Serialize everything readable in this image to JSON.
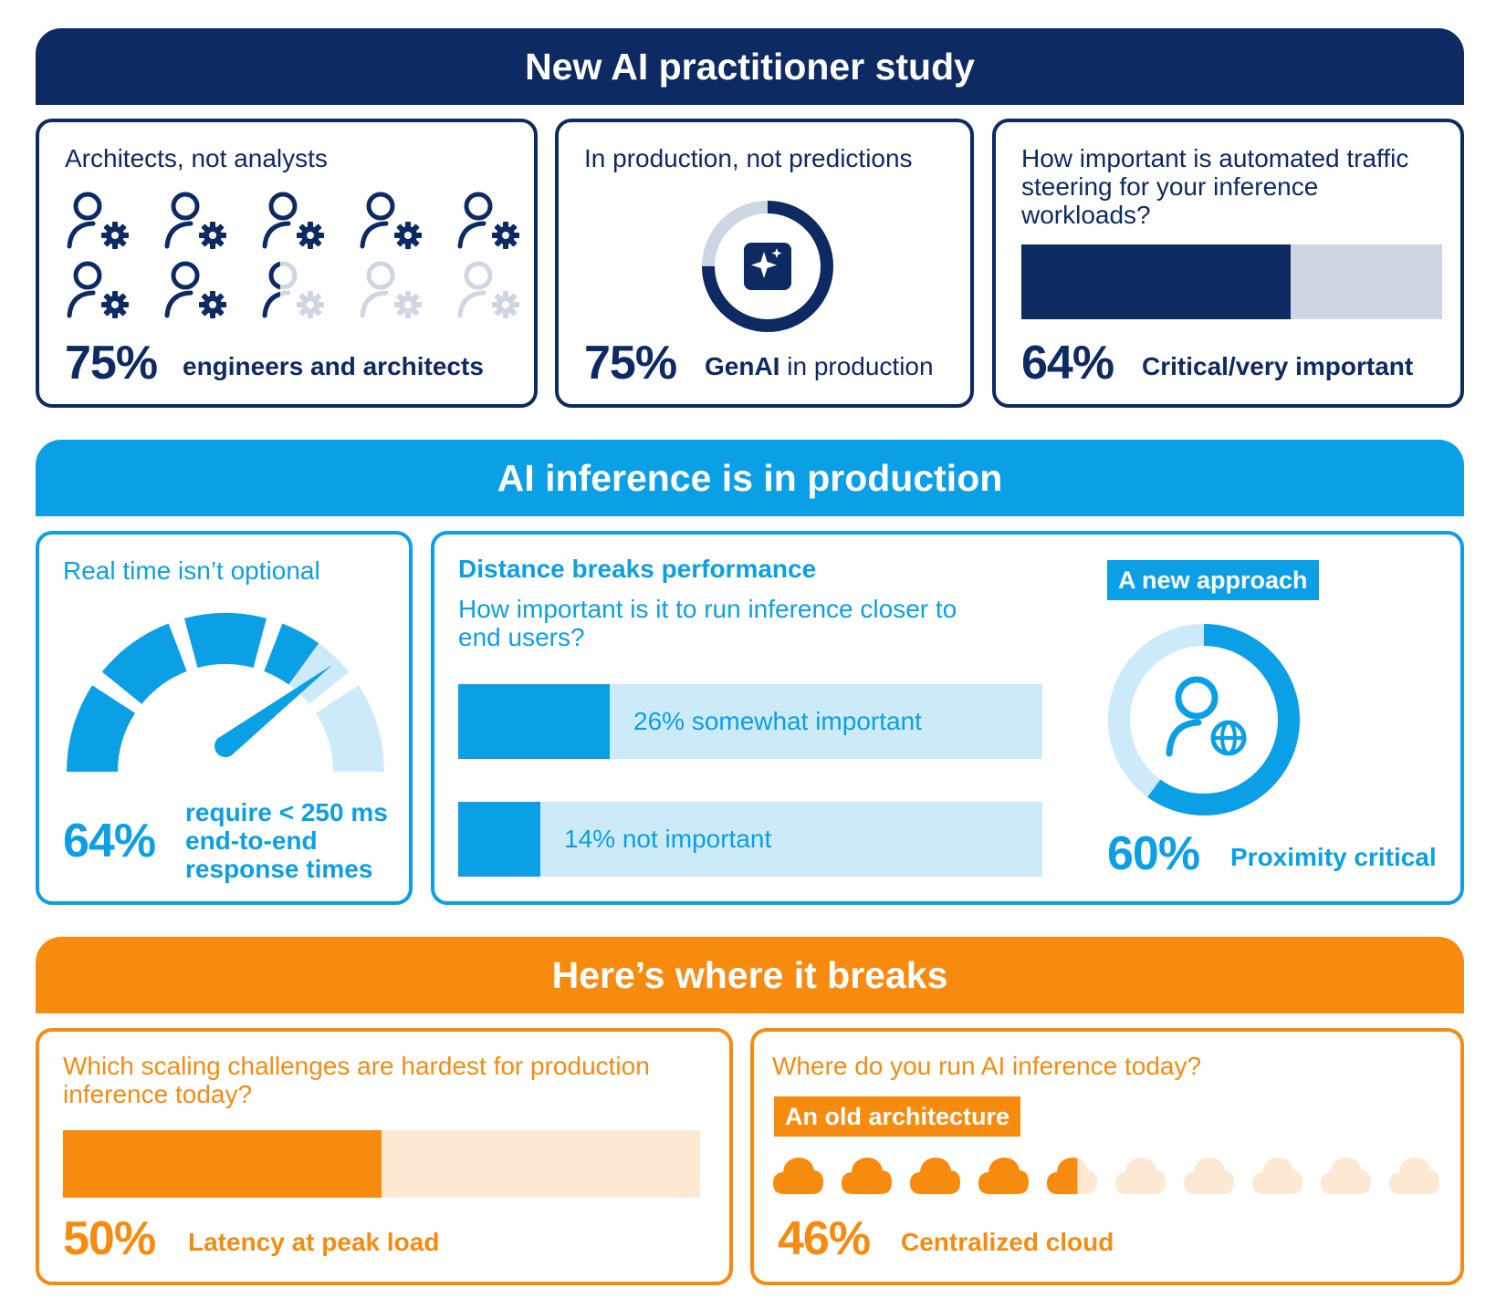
{
  "sections": {
    "study": {
      "title": "New AI practitioner study"
    },
    "inference": {
      "title": "AI inference is in production"
    },
    "breaks": {
      "title": "Here’s where it breaks"
    }
  },
  "colors": {
    "navy": "#0d2a63",
    "navy_light": "#cfd6e3",
    "blue": "#0b9fe6",
    "blue_light": "#cdeaf9",
    "orange": "#f68b0f",
    "orange_light": "#fde9d3"
  },
  "panels": {
    "architects": {
      "title": "Architects, not analysts",
      "percent": "75%",
      "label": "engineers and architects",
      "icon": "person-gear-icon"
    },
    "production": {
      "title": "In production, not predictions",
      "percent": "75%",
      "label_bold": "GenAI",
      "label_rest": " in production",
      "icon": "sparkle-icon"
    },
    "traffic": {
      "title": "How important is automated traffic steering for your inference workloads?",
      "percent": "64%",
      "label": "Critical/very important"
    },
    "realtime": {
      "title": "Real time isn’t optional",
      "percent": "64%",
      "label_lines": [
        "require < 250 ms",
        "end-to-end",
        "response times"
      ],
      "icon": "speedometer-icon"
    },
    "distance": {
      "title": "Distance breaks performance",
      "question": "How important is it to run inference closer to end users?",
      "bars": [
        "26% somewhat important",
        "14% not important"
      ]
    },
    "approach": {
      "tag": "A new approach",
      "percent": "60%",
      "label": "Proximity critical",
      "icon": "person-globe-icon"
    },
    "scaling": {
      "title": "Which scaling challenges are hardest for production inference today?",
      "percent": "50%",
      "label": "Latency at peak load"
    },
    "where": {
      "title": "Where do you run AI inference today?",
      "tag": "An old architecture",
      "percent": "46%",
      "label": "Centralized cloud",
      "icon": "cloud-icon"
    }
  },
  "chart_data": [
    {
      "type": "pictograph",
      "title": "Architects, not analysts",
      "icon_count": 10,
      "value_percent": 75,
      "label": "engineers and architects"
    },
    {
      "type": "pie",
      "title": "In production, not predictions",
      "value_percent": 75,
      "label": "GenAI in production"
    },
    {
      "type": "bar",
      "title": "How important is automated traffic steering for your inference workloads?",
      "value_percent": 64,
      "label": "Critical/very important"
    },
    {
      "type": "gauge",
      "title": "Real time isn’t optional",
      "value_percent": 64,
      "label": "require < 250 ms end-to-end response times"
    },
    {
      "type": "bar",
      "title": "Distance breaks performance",
      "categories": [
        "somewhat important",
        "not important"
      ],
      "values": [
        26,
        14
      ]
    },
    {
      "type": "pie",
      "title": "A new approach",
      "value_percent": 60,
      "label": "Proximity critical"
    },
    {
      "type": "bar",
      "title": "Which scaling challenges are hardest for production inference today?",
      "value_percent": 50,
      "label": "Latency at peak load"
    },
    {
      "type": "pictograph",
      "title": "Where do you run AI inference today?",
      "icon_count": 10,
      "value_percent": 46,
      "label": "Centralized cloud"
    }
  ]
}
